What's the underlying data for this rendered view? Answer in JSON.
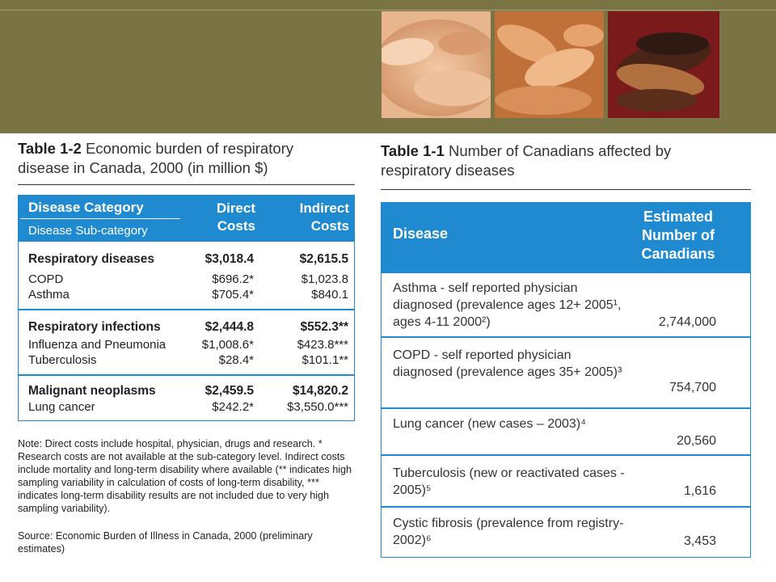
{
  "table_1_2": {
    "label": "Table 1-2",
    "title": "Economic burden of respiratory disease in Canada, 2000 (in million $)",
    "header": {
      "category": "Disease Category",
      "subcategory": "Disease Sub-category",
      "direct": "Direct Costs",
      "indirect": "Indirect Costs"
    },
    "groups": [
      {
        "name": "Respiratory diseases",
        "direct": "$3,018.4",
        "indirect": "$2,615.5",
        "rows": [
          {
            "name": "COPD",
            "direct": "$696.2*",
            "indirect": "$1,023.8"
          },
          {
            "name": "Asthma",
            "direct": "$705.4*",
            "indirect": "$840.1"
          }
        ]
      },
      {
        "name": "Respiratory infections",
        "direct": "$2,444.8",
        "indirect": "$552.3**",
        "rows": [
          {
            "name": "Influenza and Pneumonia",
            "direct": "$1,008.6*",
            "indirect": "$423.8***"
          },
          {
            "name": "Tuberculosis",
            "direct": "$28.4*",
            "indirect": "$101.1**"
          }
        ]
      },
      {
        "name": "Malignant neoplasms",
        "direct": "$2,459.5",
        "indirect": "$14,820.2",
        "rows": [
          {
            "name": "Lung cancer",
            "direct": "$242.2*",
            "indirect": "$3,550.0***"
          }
        ]
      }
    ],
    "note": "Note: Direct costs include hospital, physician, drugs and research. * Research costs are not available at the sub-category level. Indirect costs include mortality and long-term disability where available (** indicates high sampling variability in calculation of costs of long-term disability, *** indicates long-term disability results are not included due to very high sampling variability).",
    "source": "Source: Economic Burden of Illness in Canada, 2000 (preliminary estimates)"
  },
  "table_1_1": {
    "label": "Table 1-1",
    "title": "Number of Canadians affected by respiratory diseases",
    "header": {
      "disease": "Disease",
      "estimate": "Estimated Number of Canadians"
    },
    "rows": [
      {
        "disease": "Asthma - self reported physician diagnosed (prevalence ages 12+ 2005¹, ages 4-11 2000²)",
        "value": "2,744,000"
      },
      {
        "disease": "COPD - self reported physician diagnosed (prevalence ages 35+ 2005)³",
        "value": "754,700"
      },
      {
        "disease": "Lung cancer (new cases – 2003)⁴",
        "value": "20,560"
      },
      {
        "disease": "Tuberculosis (new or reactivated cases - 2005)⁵",
        "value": "1,616"
      },
      {
        "disease": "Cystic fibrosis (prevalence from registry- 2002)⁶",
        "value": "3,453"
      }
    ]
  },
  "colors": {
    "banner": "#7a7343",
    "table_blue": "#1f8ad0"
  }
}
